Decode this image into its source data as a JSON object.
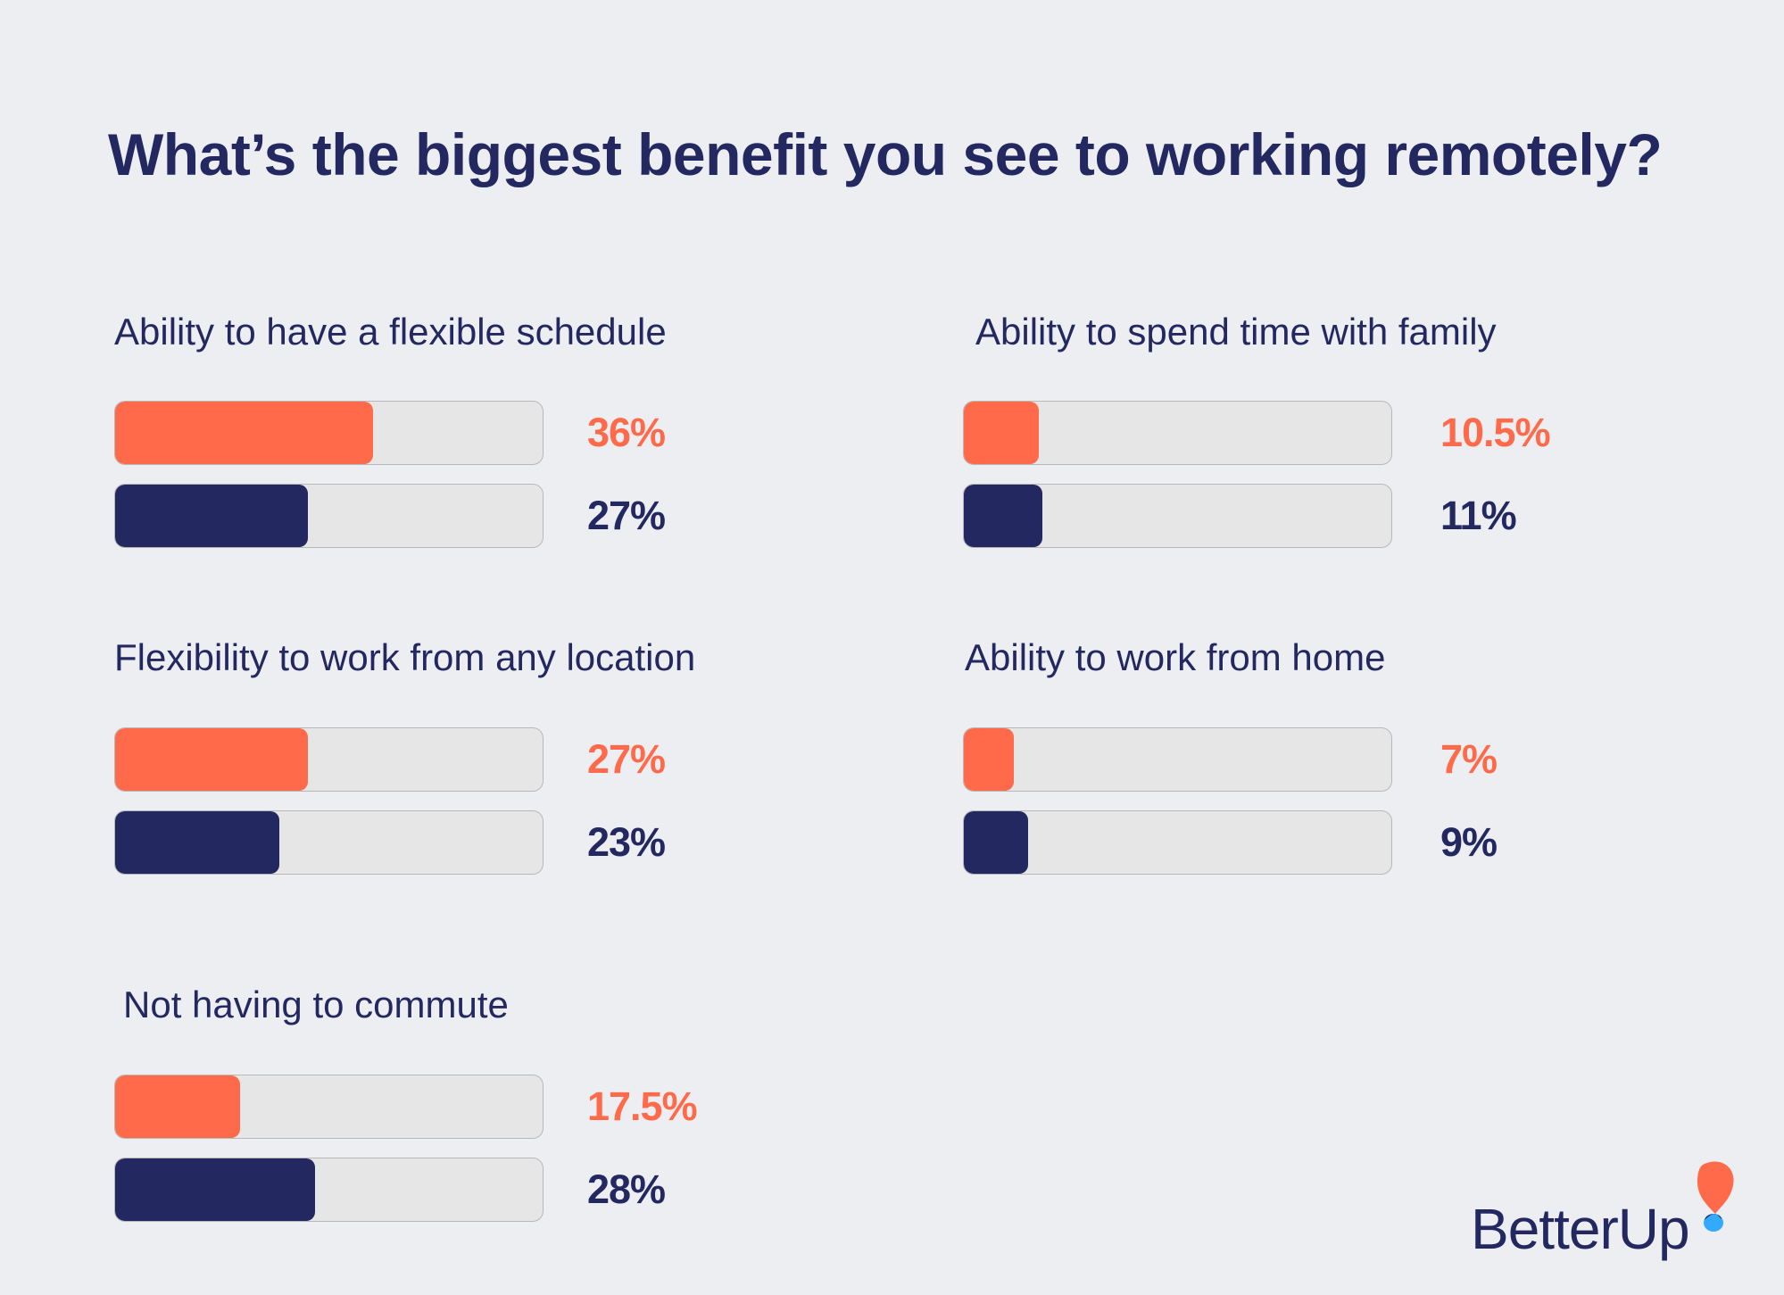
{
  "chart_data": {
    "type": "bar",
    "title": "What’s the biggest benefit you see to working remotely?",
    "orientation": "horizontal",
    "colors": {
      "series_1": "#ff6a4b",
      "series_2": "#232860",
      "track": "#e6e6e6",
      "background": "#edeef2"
    },
    "groups": [
      {
        "label": "Ability to have a flexible schedule",
        "values": [
          36,
          27
        ],
        "value_labels": [
          "36%",
          "27%"
        ]
      },
      {
        "label": "Ability to spend time with family",
        "values": [
          10.5,
          11
        ],
        "value_labels": [
          "10.5%",
          "11%"
        ]
      },
      {
        "label": "Flexibility to work from any location",
        "values": [
          27,
          23
        ],
        "value_labels": [
          "27%",
          "23%"
        ]
      },
      {
        "label": "Ability to work from home",
        "values": [
          7,
          9
        ],
        "value_labels": [
          "7%",
          "9%"
        ]
      },
      {
        "label": "Not having to commute",
        "values": [
          17.5,
          28
        ],
        "value_labels": [
          "17.5%",
          "28%"
        ]
      }
    ]
  },
  "logo": {
    "text": "BetterUp"
  }
}
